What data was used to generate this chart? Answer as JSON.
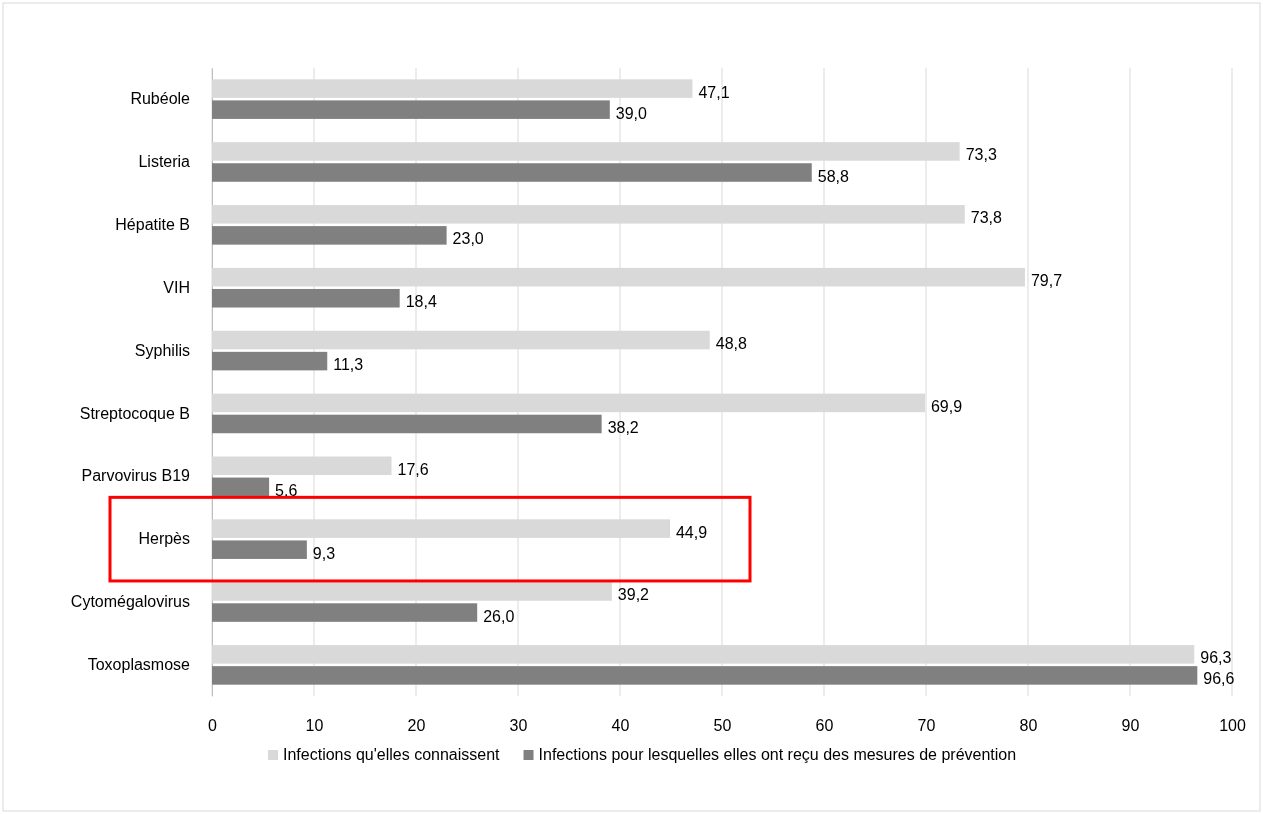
{
  "chart_data": {
    "type": "bar",
    "orientation": "horizontal",
    "categories": [
      "Rubéole",
      "Listeria",
      "Hépatite B",
      "VIH",
      "Syphilis",
      "Streptocoque B",
      "Parvovirus B19",
      "Herpès",
      "Cytomégalovirus",
      "Toxoplasmose"
    ],
    "series": [
      {
        "name": "Infections qu'elles connaissent",
        "color": "#d9d9d9",
        "values": [
          47.1,
          73.3,
          73.8,
          79.7,
          48.8,
          69.9,
          17.6,
          44.9,
          39.2,
          96.3
        ],
        "value_labels": [
          "47,1",
          "73,3",
          "73,8",
          "79,7",
          "48,8",
          "69,9",
          "17,6",
          "44,9",
          "39,2",
          "96,3"
        ]
      },
      {
        "name": "Infections pour lesquelles elles ont reçu des mesures de prévention",
        "color": "#808080",
        "values": [
          39.0,
          58.8,
          23.0,
          18.4,
          11.3,
          38.2,
          5.6,
          9.3,
          26.0,
          96.6
        ],
        "value_labels": [
          "39,0",
          "58,8",
          "23,0",
          "18,4",
          "11,3",
          "38,2",
          "5,6",
          "9,3",
          "26,0",
          "96,6"
        ]
      }
    ],
    "xlim": [
      0,
      100
    ],
    "xticks": [
      0,
      10,
      20,
      30,
      40,
      50,
      60,
      70,
      80,
      90,
      100
    ],
    "grid": "x",
    "legend": "bottom"
  }
}
